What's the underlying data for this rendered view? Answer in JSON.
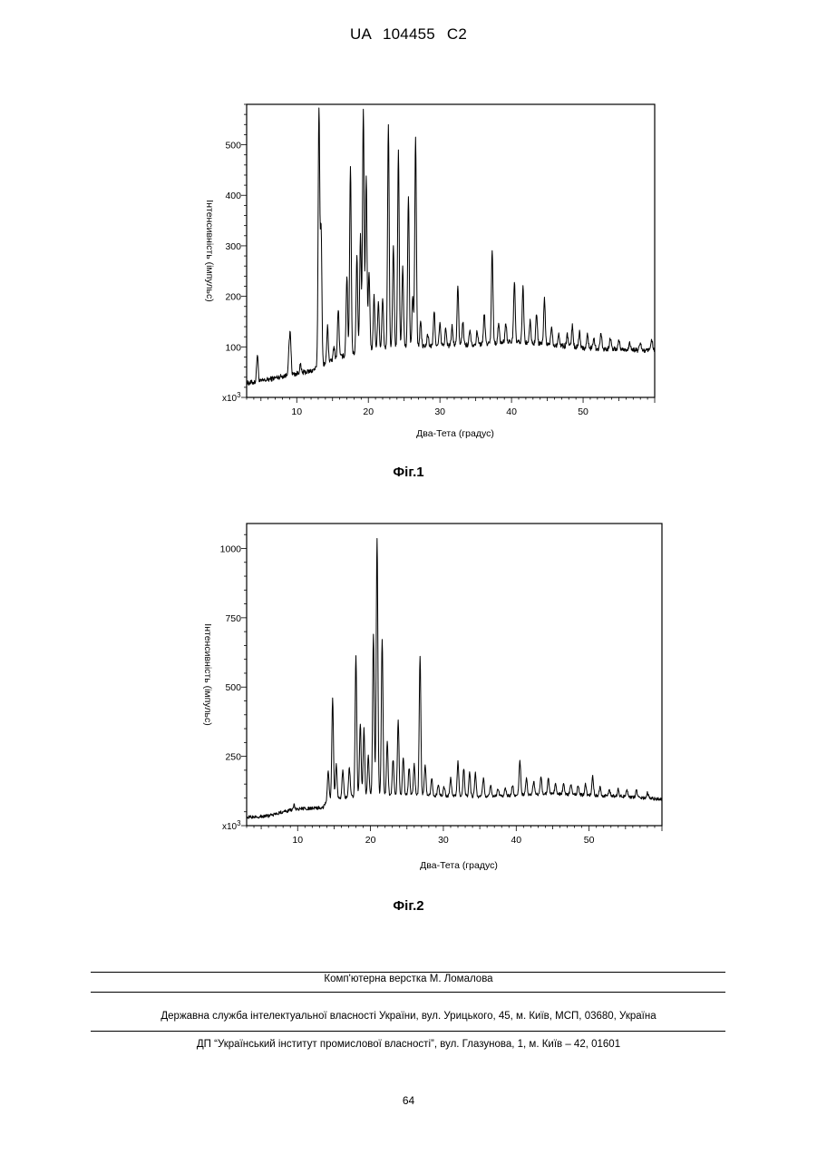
{
  "header": {
    "patent_number": "UA   104455   C2"
  },
  "figures": [
    {
      "caption": "Фіг.1"
    },
    {
      "caption": "Фіг.2"
    }
  ],
  "footer": {
    "typesetting": "Комп'ютерна верстка М. Ломалова",
    "agency": "Державна служба інтелектуальної власності України, вул. Урицького, 45, м. Київ, МСП, 03680, Україна",
    "institute": "ДП “Український інститут промислової власності”, вул. Глазунова, 1, м. Київ – 42, 01601"
  },
  "page_number": "64",
  "chart_data": [
    {
      "type": "line",
      "xlabel": "Два-Тета (градус)",
      "ylabel": "Інтенсивність (імпульс)",
      "y_multiplier_label": "x10",
      "y_multiplier_exp": "3",
      "xlim": [
        3,
        60
      ],
      "ylim": [
        0,
        580
      ],
      "x_ticks": [
        10,
        20,
        30,
        40,
        50
      ],
      "y_ticks": [
        100,
        200,
        300,
        400,
        500
      ],
      "baseline": [
        [
          3,
          28
        ],
        [
          5,
          32
        ],
        [
          8,
          42
        ],
        [
          12,
          52
        ],
        [
          13,
          60
        ],
        [
          16,
          80
        ],
        [
          20,
          95
        ],
        [
          25,
          100
        ],
        [
          30,
          102
        ],
        [
          35,
          105
        ],
        [
          40,
          110
        ],
        [
          45,
          105
        ],
        [
          50,
          98
        ],
        [
          55,
          95
        ],
        [
          60,
          92
        ]
      ],
      "peaks": [
        [
          4.5,
          85
        ],
        [
          8.9,
          82
        ],
        [
          9.1,
          120
        ],
        [
          10.5,
          64
        ],
        [
          13.1,
          570
        ],
        [
          13.4,
          330
        ],
        [
          14.3,
          140
        ],
        [
          15.2,
          100
        ],
        [
          15.8,
          175
        ],
        [
          17.0,
          240
        ],
        [
          17.5,
          460
        ],
        [
          18.4,
          280
        ],
        [
          18.9,
          320
        ],
        [
          19.3,
          570
        ],
        [
          19.7,
          440
        ],
        [
          20.1,
          250
        ],
        [
          20.8,
          200
        ],
        [
          21.4,
          190
        ],
        [
          22.0,
          195
        ],
        [
          22.8,
          540
        ],
        [
          23.5,
          300
        ],
        [
          24.2,
          485
        ],
        [
          24.8,
          260
        ],
        [
          25.6,
          400
        ],
        [
          26.2,
          200
        ],
        [
          26.6,
          515
        ],
        [
          27.3,
          150
        ],
        [
          28.3,
          125
        ],
        [
          29.2,
          170
        ],
        [
          30.0,
          145
        ],
        [
          30.8,
          135
        ],
        [
          31.7,
          140
        ],
        [
          32.5,
          218
        ],
        [
          33.2,
          150
        ],
        [
          34.2,
          135
        ],
        [
          35.2,
          130
        ],
        [
          36.2,
          165
        ],
        [
          37.3,
          292
        ],
        [
          38.2,
          145
        ],
        [
          39.2,
          148
        ],
        [
          40.4,
          230
        ],
        [
          41.6,
          218
        ],
        [
          42.6,
          150
        ],
        [
          43.5,
          165
        ],
        [
          44.6,
          195
        ],
        [
          45.6,
          142
        ],
        [
          46.6,
          125
        ],
        [
          47.8,
          125
        ],
        [
          48.5,
          142
        ],
        [
          49.5,
          130
        ],
        [
          50.6,
          125
        ],
        [
          51.5,
          120
        ],
        [
          52.5,
          128
        ],
        [
          53.8,
          118
        ],
        [
          55.0,
          115
        ],
        [
          56.5,
          110
        ],
        [
          58.0,
          108
        ],
        [
          59.6,
          115
        ]
      ],
      "noise": 5
    },
    {
      "type": "line",
      "xlabel": "Два-Тета (градус)",
      "ylabel": "Інтенсивність (імпульс)",
      "y_multiplier_label": "x10",
      "y_multiplier_exp": "3",
      "xlim": [
        3,
        60
      ],
      "ylim": [
        0,
        1090
      ],
      "x_ticks": [
        10,
        20,
        30,
        40,
        50
      ],
      "y_ticks": [
        250,
        500,
        750,
        1000
      ],
      "baseline": [
        [
          3,
          30
        ],
        [
          6,
          35
        ],
        [
          8,
          50
        ],
        [
          10,
          60
        ],
        [
          12,
          62
        ],
        [
          13.5,
          66
        ],
        [
          14,
          90
        ],
        [
          16,
          100
        ],
        [
          20,
          110
        ],
        [
          25,
          110
        ],
        [
          30,
          108
        ],
        [
          35,
          105
        ],
        [
          40,
          110
        ],
        [
          45,
          115
        ],
        [
          50,
          110
        ],
        [
          55,
          105
        ],
        [
          60,
          95
        ]
      ],
      "peaks": [
        [
          9.5,
          75
        ],
        [
          14.2,
          200
        ],
        [
          14.8,
          460
        ],
        [
          15.3,
          220
        ],
        [
          16.2,
          200
        ],
        [
          17.1,
          210
        ],
        [
          18.0,
          610
        ],
        [
          18.6,
          370
        ],
        [
          19.1,
          350
        ],
        [
          19.7,
          250
        ],
        [
          20.4,
          690
        ],
        [
          20.9,
          1040
        ],
        [
          21.6,
          675
        ],
        [
          22.3,
          300
        ],
        [
          23.1,
          240
        ],
        [
          23.8,
          380
        ],
        [
          24.5,
          250
        ],
        [
          25.3,
          210
        ],
        [
          26.0,
          220
        ],
        [
          26.8,
          615
        ],
        [
          27.5,
          220
        ],
        [
          28.4,
          170
        ],
        [
          29.3,
          150
        ],
        [
          30.1,
          140
        ],
        [
          31.0,
          170
        ],
        [
          32.0,
          230
        ],
        [
          32.8,
          205
        ],
        [
          33.6,
          195
        ],
        [
          34.4,
          190
        ],
        [
          35.5,
          170
        ],
        [
          36.5,
          145
        ],
        [
          37.5,
          130
        ],
        [
          38.5,
          135
        ],
        [
          39.5,
          145
        ],
        [
          40.5,
          238
        ],
        [
          41.4,
          170
        ],
        [
          42.4,
          160
        ],
        [
          43.4,
          180
        ],
        [
          44.4,
          170
        ],
        [
          45.4,
          155
        ],
        [
          46.5,
          150
        ],
        [
          47.5,
          150
        ],
        [
          48.5,
          145
        ],
        [
          49.5,
          150
        ],
        [
          50.5,
          178
        ],
        [
          51.5,
          140
        ],
        [
          52.8,
          130
        ],
        [
          54.0,
          130
        ],
        [
          55.2,
          130
        ],
        [
          56.5,
          125
        ],
        [
          58.0,
          120
        ]
      ],
      "noise": 6
    }
  ]
}
